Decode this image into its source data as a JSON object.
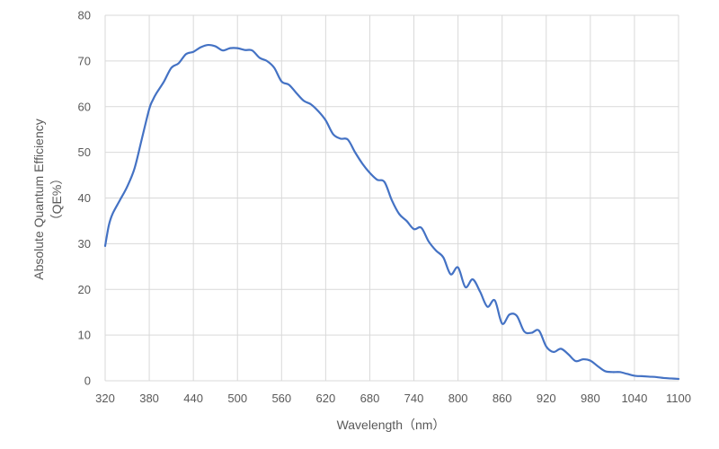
{
  "chart_data": {
    "type": "line",
    "xlabel": "Wavelength（nm）",
    "ylabel_line1": "Absolute Quantum Efficiency",
    "ylabel_line2": "（QE%）",
    "xlim": [
      320,
      1100
    ],
    "ylim": [
      0,
      80
    ],
    "x_ticks": [
      320,
      380,
      440,
      500,
      560,
      620,
      680,
      740,
      800,
      860,
      920,
      980,
      1040,
      1100
    ],
    "y_ticks": [
      0,
      10,
      20,
      30,
      40,
      50,
      60,
      70,
      80
    ],
    "grid": true,
    "line_color": "#4472C4",
    "series": [
      {
        "x": [
          320,
          325,
          330,
          340,
          350,
          360,
          370,
          380,
          385,
          390,
          400,
          410,
          420,
          430,
          440,
          450,
          460,
          470,
          480,
          490,
          500,
          510,
          520,
          530,
          540,
          550,
          560,
          570,
          580,
          590,
          600,
          610,
          620,
          630,
          640,
          650,
          660,
          670,
          680,
          690,
          700,
          710,
          720,
          730,
          740,
          750,
          760,
          770,
          780,
          790,
          800,
          810,
          820,
          830,
          840,
          850,
          860,
          870,
          880,
          890,
          900,
          910,
          920,
          930,
          940,
          950,
          960,
          970,
          980,
          990,
          1000,
          1010,
          1020,
          1030,
          1040,
          1050,
          1060,
          1070,
          1080,
          1090,
          1100
        ],
        "y": [
          29.5,
          34,
          36.5,
          39.5,
          42.5,
          46.5,
          53,
          59.5,
          61.5,
          63,
          65.5,
          68.5,
          69.5,
          71.5,
          72,
          73,
          73.5,
          73.2,
          72.3,
          72.8,
          72.8,
          72.4,
          72.3,
          70.7,
          70,
          68.5,
          65.5,
          64.8,
          63,
          61.3,
          60.5,
          59,
          57,
          54,
          53,
          52.8,
          50,
          47.5,
          45.5,
          44,
          43.5,
          39.5,
          36.5,
          35,
          33.2,
          33.5,
          30.5,
          28.5,
          27,
          23.3,
          24.8,
          20.5,
          22.2,
          19.5,
          16.2,
          17.6,
          12.5,
          14.5,
          14.2,
          10.8,
          10.5,
          11,
          7.5,
          6.3,
          7,
          5.8,
          4.3,
          4.7,
          4.4,
          3.2,
          2.1,
          1.9,
          1.9,
          1.5,
          1.1,
          1.0,
          0.9,
          0.8,
          0.6,
          0.5,
          0.4
        ]
      }
    ]
  }
}
